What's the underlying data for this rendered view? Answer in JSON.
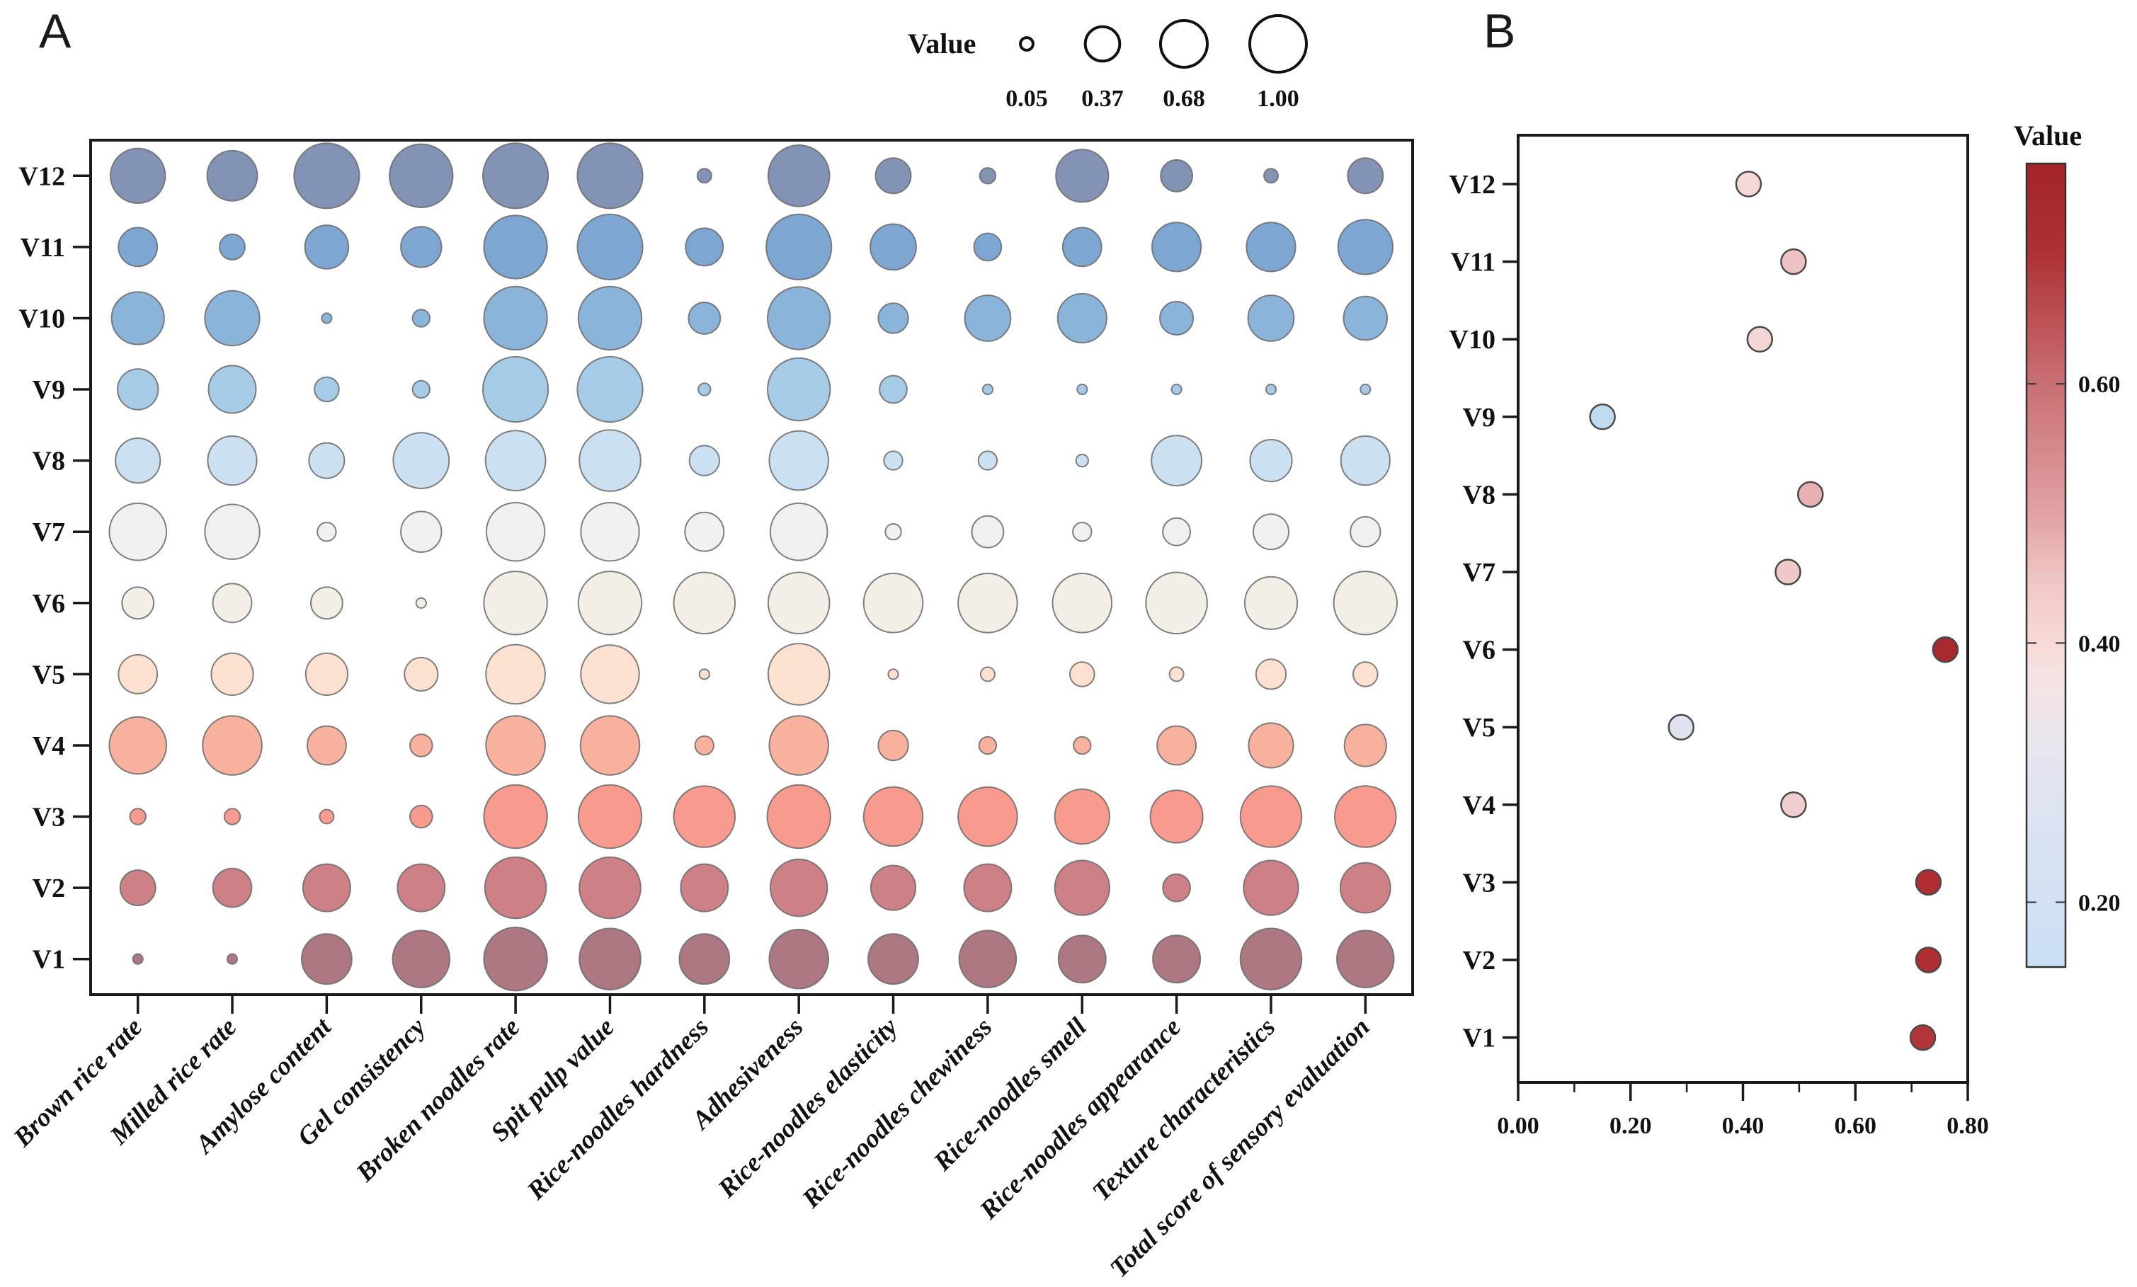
{
  "figure": {
    "panel_a_label": "A",
    "panel_b_label": "B",
    "size_legend_title": "Value",
    "colorbar_title": "Value"
  },
  "chart_data": [
    {
      "type": "bubble-matrix",
      "panel": "A",
      "size_legend": {
        "title": "Value",
        "sizes": [
          0.05,
          0.37,
          0.68,
          1.0
        ],
        "labels": [
          "0.05",
          "0.37",
          "0.68",
          "1.00"
        ]
      },
      "rows": [
        "V12",
        "V11",
        "V10",
        "V9",
        "V8",
        "V7",
        "V6",
        "V5",
        "V4",
        "V3",
        "V2",
        "V1"
      ],
      "columns": [
        "Brown rice rate",
        "Milled rice rate",
        "Amylose content",
        "Gel consistency",
        "Broken noodles rate",
        "Spit pulp value",
        "Rice-noodles hardness",
        "Adhesiveness",
        "Rice-noodles elasticity",
        "Rice-noodles chewiness",
        "Rice-noodles smell",
        "Rice-noodles appearance",
        "Texture characteristics",
        "Total score of sensory evaluation"
      ],
      "row_colors": [
        "#8393b5",
        "#7ea6d3",
        "#8ab4da",
        "#a6cbe7",
        "#cbe1f1",
        "#eff1f1",
        "#f4efe6",
        "#fce1d0",
        "#f8b19d",
        "#f89a8d",
        "#cd8186",
        "#ae7882"
      ],
      "bubble_outline": "#6b6b6b",
      "values": [
        [
          0.6,
          0.5,
          0.85,
          0.8,
          0.85,
          0.85,
          0.04,
          0.75,
          0.25,
          0.05,
          0.55,
          0.2,
          0.04,
          0.25
        ],
        [
          0.3,
          0.13,
          0.38,
          0.33,
          0.8,
          0.85,
          0.28,
          0.85,
          0.42,
          0.15,
          0.3,
          0.48,
          0.48,
          0.6
        ],
        [
          0.55,
          0.6,
          0.02,
          0.06,
          0.8,
          0.8,
          0.2,
          0.78,
          0.18,
          0.42,
          0.48,
          0.22,
          0.42,
          0.38
        ],
        [
          0.33,
          0.45,
          0.12,
          0.06,
          0.85,
          0.85,
          0.03,
          0.78,
          0.15,
          0.02,
          0.02,
          0.02,
          0.02,
          0.02
        ],
        [
          0.4,
          0.48,
          0.25,
          0.62,
          0.72,
          0.75,
          0.18,
          0.7,
          0.07,
          0.07,
          0.03,
          0.5,
          0.35,
          0.48
        ],
        [
          0.65,
          0.6,
          0.07,
          0.33,
          0.68,
          0.68,
          0.3,
          0.65,
          0.05,
          0.2,
          0.07,
          0.15,
          0.25,
          0.18
        ],
        [
          0.2,
          0.3,
          0.2,
          0.02,
          0.8,
          0.8,
          0.75,
          0.75,
          0.7,
          0.7,
          0.7,
          0.75,
          0.55,
          0.8
        ],
        [
          0.3,
          0.35,
          0.35,
          0.22,
          0.7,
          0.68,
          0.02,
          0.75,
          0.02,
          0.04,
          0.12,
          0.04,
          0.18,
          0.12
        ],
        [
          0.65,
          0.7,
          0.3,
          0.1,
          0.7,
          0.7,
          0.07,
          0.7,
          0.18,
          0.06,
          0.06,
          0.3,
          0.4,
          0.35
        ],
        [
          0.05,
          0.05,
          0.04,
          0.1,
          0.8,
          0.8,
          0.75,
          0.8,
          0.7,
          0.7,
          0.6,
          0.55,
          0.75,
          0.75
        ],
        [
          0.25,
          0.3,
          0.45,
          0.45,
          0.75,
          0.75,
          0.45,
          0.65,
          0.4,
          0.45,
          0.6,
          0.15,
          0.6,
          0.5
        ],
        [
          0.02,
          0.02,
          0.5,
          0.65,
          0.8,
          0.75,
          0.5,
          0.7,
          0.5,
          0.65,
          0.45,
          0.45,
          0.75,
          0.65
        ]
      ]
    },
    {
      "type": "scatter",
      "panel": "B",
      "rows": [
        "V12",
        "V11",
        "V10",
        "V9",
        "V8",
        "V7",
        "V6",
        "V5",
        "V4",
        "V3",
        "V2",
        "V1"
      ],
      "x_values": [
        0.41,
        0.49,
        0.43,
        0.15,
        0.52,
        0.48,
        0.76,
        0.29,
        0.49,
        0.73,
        0.73,
        0.72
      ],
      "point_colors": [
        "#f6d8d8",
        "#eec2c4",
        "#f5d4d5",
        "#bedbf0",
        "#e8b2b5",
        "#f0c8c9",
        "#a8292e",
        "#e0e3ef",
        "#f0cdce",
        "#b02d32",
        "#b02d32",
        "#b23539"
      ],
      "point_outline": "#4a4a4a",
      "xlim": [
        0,
        0.8
      ],
      "x_ticks": [
        0.0,
        0.2,
        0.4,
        0.6,
        0.8
      ],
      "x_tick_labels": [
        "0.00",
        "0.20",
        "0.40",
        "0.60",
        "0.80"
      ],
      "colorbar": {
        "title": "Value",
        "range": [
          0.15,
          0.77
        ],
        "tick_values": [
          0.6,
          0.4,
          0.2
        ],
        "tick_labels": [
          "0.60",
          "0.40",
          "0.20"
        ],
        "stops": [
          [
            0.0,
            "#a22428"
          ],
          [
            0.11,
            "#ad3136"
          ],
          [
            0.27,
            "#c96e72"
          ],
          [
            0.44,
            "#e2a3a5"
          ],
          [
            0.52,
            "#f0c6c4"
          ],
          [
            0.6,
            "#f7dcda"
          ],
          [
            0.65,
            "#f5e3e3"
          ],
          [
            0.71,
            "#ebe6ee"
          ],
          [
            0.79,
            "#dfe4f1"
          ],
          [
            0.92,
            "#d3e0f3"
          ],
          [
            1.0,
            "#cbdff4"
          ]
        ]
      }
    }
  ]
}
